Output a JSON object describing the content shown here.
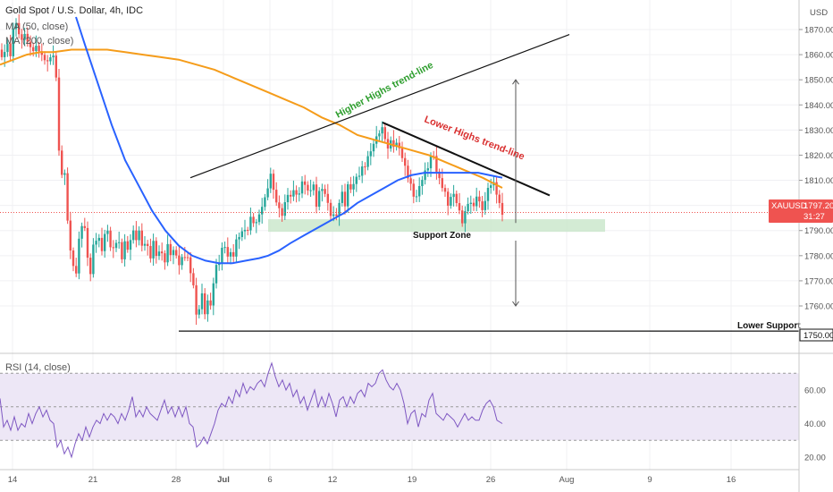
{
  "legend": {
    "title": "Gold Spot / U.S. Dollar, 4h, IDC",
    "ma1": "MA (50, close)",
    "ma2": "MA (200, close)",
    "rsi": "RSI (14, close)"
  },
  "price_axis": {
    "unit": "USD",
    "ticks": [
      "1870.00",
      "1860.00",
      "1850.00",
      "1840.00",
      "1830.00",
      "1820.00",
      "1810.00",
      "1800.00",
      "1790.00",
      "1780.00",
      "1770.00",
      "1760.00"
    ],
    "tick_values": [
      1870,
      1860,
      1850,
      1840,
      1830,
      1820,
      1810,
      1800,
      1790,
      1780,
      1770,
      1760
    ],
    "symbol": "XAUUSD",
    "last_price": "1797.20",
    "countdown": "31:27",
    "lower_support_price": "1750.00"
  },
  "rsi_axis": {
    "ticks": [
      "60.00",
      "40.00",
      "20.00"
    ],
    "tick_values": [
      60,
      40,
      20
    ],
    "upper_band": 70,
    "lower_band": 30,
    "mid": 50
  },
  "time_axis": {
    "ticks": [
      "14",
      "21",
      "28",
      "Jul",
      "6",
      "12",
      "19",
      "26",
      "Aug",
      "9",
      "16"
    ]
  },
  "annotations": {
    "higher_highs": "Higher Highs trend-line",
    "lower_highs": "Lower Highs trend-line",
    "support_zone": "Support Zone",
    "lower_support": "Lower Support"
  },
  "colors": {
    "up": "#26a69a",
    "down": "#ef5350",
    "ma50": "#2962ff",
    "ma200": "#f59c1a",
    "rsi": "#7e57c2",
    "rsi_band": "#ede7f6",
    "support_zone": "#c8e6c9",
    "price_tag": "#ef5350"
  },
  "chart_data": {
    "type": "candlestick",
    "instrument": "Gold Spot / U.S. Dollar",
    "interval": "4h",
    "price_range": [
      1748,
      1875
    ],
    "close_path": [
      [
        0,
        1862
      ],
      [
        2,
        1859
      ],
      [
        4,
        1866
      ],
      [
        6,
        1858
      ],
      [
        8,
        1862
      ],
      [
        10,
        1865
      ],
      [
        12,
        1858
      ],
      [
        15,
        1869
      ],
      [
        18,
        1872
      ],
      [
        21,
        1868
      ],
      [
        24,
        1864
      ],
      [
        27,
        1871
      ],
      [
        30,
        1864
      ],
      [
        33,
        1867
      ],
      [
        36,
        1860
      ],
      [
        39,
        1866
      ],
      [
        42,
        1862
      ],
      [
        45,
        1864
      ],
      [
        48,
        1856
      ],
      [
        51,
        1860
      ],
      [
        54,
        1855
      ],
      [
        58,
        1860
      ],
      [
        62,
        1858
      ],
      [
        64,
        1835
      ],
      [
        66,
        1822
      ],
      [
        68,
        1812
      ],
      [
        70,
        1810
      ],
      [
        72,
        1815
      ],
      [
        74,
        1805
      ],
      [
        76,
        1792
      ],
      [
        78,
        1780
      ],
      [
        80,
        1785
      ],
      [
        82,
        1778
      ],
      [
        84,
        1770
      ],
      [
        86,
        1775
      ],
      [
        88,
        1790
      ],
      [
        90,
        1782
      ],
      [
        92,
        1795
      ],
      [
        94,
        1788
      ],
      [
        96,
        1795
      ],
      [
        98,
        1780
      ],
      [
        100,
        1765
      ],
      [
        102,
        1775
      ],
      [
        104,
        1785
      ],
      [
        106,
        1782
      ],
      [
        110,
        1788
      ],
      [
        113,
        1780
      ],
      [
        116,
        1785
      ],
      [
        120,
        1792
      ],
      [
        124,
        1782
      ],
      [
        128,
        1785
      ],
      [
        132,
        1788
      ],
      [
        136,
        1780
      ],
      [
        140,
        1786
      ],
      [
        144,
        1782
      ],
      [
        148,
        1790
      ],
      [
        152,
        1786
      ],
      [
        156,
        1788
      ],
      [
        160,
        1782
      ],
      [
        164,
        1785
      ],
      [
        168,
        1779
      ],
      [
        172,
        1786
      ],
      [
        176,
        1780
      ],
      [
        180,
        1784
      ],
      [
        184,
        1778
      ],
      [
        188,
        1785
      ],
      [
        192,
        1780
      ],
      [
        196,
        1782
      ],
      [
        200,
        1775
      ],
      [
        204,
        1778
      ],
      [
        208,
        1780
      ],
      [
        212,
        1775
      ],
      [
        216,
        1770
      ],
      [
        218,
        1760
      ],
      [
        220,
        1756
      ],
      [
        222,
        1762
      ],
      [
        224,
        1758
      ],
      [
        226,
        1765
      ],
      [
        228,
        1760
      ],
      [
        230,
        1758
      ],
      [
        232,
        1764
      ],
      [
        234,
        1756
      ],
      [
        236,
        1762
      ],
      [
        238,
        1768
      ],
      [
        240,
        1772
      ],
      [
        242,
        1775
      ],
      [
        244,
        1780
      ],
      [
        246,
        1776
      ],
      [
        248,
        1782
      ],
      [
        250,
        1778
      ],
      [
        252,
        1784
      ],
      [
        254,
        1780
      ],
      [
        256,
        1777
      ],
      [
        258,
        1780
      ],
      [
        260,
        1778
      ],
      [
        262,
        1782
      ],
      [
        264,
        1786
      ],
      [
        266,
        1784
      ],
      [
        268,
        1790
      ],
      [
        270,
        1788
      ],
      [
        272,
        1794
      ],
      [
        274,
        1791
      ],
      [
        276,
        1795
      ],
      [
        278,
        1790
      ],
      [
        280,
        1796
      ],
      [
        282,
        1792
      ],
      [
        284,
        1795
      ],
      [
        286,
        1792
      ],
      [
        290,
        1796
      ],
      [
        294,
        1800
      ],
      [
        298,
        1802
      ],
      [
        300,
        1808
      ],
      [
        302,
        1810
      ],
      [
        304,
        1812
      ],
      [
        306,
        1806
      ],
      [
        308,
        1800
      ],
      [
        310,
        1802
      ],
      [
        314,
        1796
      ],
      [
        318,
        1800
      ],
      [
        322,
        1806
      ],
      [
        326,
        1804
      ],
      [
        330,
        1808
      ],
      [
        334,
        1802
      ],
      [
        338,
        1810
      ],
      [
        342,
        1806
      ],
      [
        346,
        1804
      ],
      [
        350,
        1808
      ],
      [
        354,
        1800
      ],
      [
        358,
        1806
      ],
      [
        362,
        1808
      ],
      [
        366,
        1802
      ],
      [
        370,
        1798
      ],
      [
        374,
        1796
      ],
      [
        378,
        1798
      ],
      [
        382,
        1806
      ],
      [
        386,
        1800
      ],
      [
        390,
        1808
      ],
      [
        394,
        1805
      ],
      [
        398,
        1810
      ],
      [
        402,
        1812
      ],
      [
        406,
        1815
      ],
      [
        410,
        1818
      ],
      [
        414,
        1822
      ],
      [
        418,
        1826
      ],
      [
        422,
        1828
      ],
      [
        426,
        1832
      ],
      [
        430,
        1828
      ],
      [
        434,
        1822
      ],
      [
        438,
        1825
      ],
      [
        442,
        1822
      ],
      [
        446,
        1824
      ],
      [
        450,
        1818
      ],
      [
        454,
        1815
      ],
      [
        458,
        1810
      ],
      [
        462,
        1806
      ],
      [
        466,
        1804
      ],
      [
        470,
        1810
      ],
      [
        474,
        1812
      ],
      [
        478,
        1815
      ],
      [
        482,
        1818
      ],
      [
        484,
        1824
      ],
      [
        486,
        1816
      ],
      [
        490,
        1810
      ],
      [
        494,
        1808
      ],
      [
        498,
        1804
      ],
      [
        502,
        1800
      ],
      [
        506,
        1806
      ],
      [
        510,
        1804
      ],
      [
        514,
        1798
      ],
      [
        518,
        1794
      ],
      [
        522,
        1800
      ],
      [
        526,
        1802
      ],
      [
        530,
        1798
      ],
      [
        534,
        1805
      ],
      [
        538,
        1796
      ],
      [
        542,
        1800
      ],
      [
        546,
        1806
      ],
      [
        550,
        1810
      ],
      [
        554,
        1808
      ],
      [
        558,
        1803
      ],
      [
        562,
        1797
      ]
    ],
    "ma50_path": [
      [
        85,
        1875
      ],
      [
        95,
        1864
      ],
      [
        110,
        1848
      ],
      [
        125,
        1832
      ],
      [
        140,
        1818
      ],
      [
        155,
        1808
      ],
      [
        170,
        1798
      ],
      [
        185,
        1790
      ],
      [
        200,
        1784
      ],
      [
        215,
        1780
      ],
      [
        230,
        1778
      ],
      [
        245,
        1777
      ],
      [
        260,
        1777
      ],
      [
        275,
        1778
      ],
      [
        290,
        1779
      ],
      [
        300,
        1780
      ],
      [
        312,
        1782
      ],
      [
        325,
        1785
      ],
      [
        340,
        1788
      ],
      [
        355,
        1791
      ],
      [
        370,
        1794
      ],
      [
        385,
        1797
      ],
      [
        400,
        1801
      ],
      [
        415,
        1804
      ],
      [
        430,
        1807
      ],
      [
        445,
        1810
      ],
      [
        460,
        1812
      ],
      [
        475,
        1813
      ],
      [
        490,
        1813
      ],
      [
        505,
        1813
      ],
      [
        520,
        1813
      ],
      [
        535,
        1813
      ],
      [
        548,
        1812
      ],
      [
        562,
        1811
      ]
    ],
    "ma200_path": [
      [
        0,
        1856
      ],
      [
        15,
        1858
      ],
      [
        30,
        1860
      ],
      [
        45,
        1861
      ],
      [
        60,
        1861
      ],
      [
        80,
        1862
      ],
      [
        100,
        1862
      ],
      [
        120,
        1862
      ],
      [
        140,
        1861
      ],
      [
        160,
        1860
      ],
      [
        180,
        1859
      ],
      [
        200,
        1858
      ],
      [
        220,
        1856
      ],
      [
        240,
        1854
      ],
      [
        260,
        1851
      ],
      [
        280,
        1848
      ],
      [
        300,
        1845
      ],
      [
        320,
        1842
      ],
      [
        340,
        1839
      ],
      [
        360,
        1835
      ],
      [
        380,
        1832
      ],
      [
        400,
        1828
      ],
      [
        420,
        1826
      ],
      [
        440,
        1824
      ],
      [
        460,
        1822
      ],
      [
        480,
        1820
      ],
      [
        500,
        1817
      ],
      [
        520,
        1814
      ],
      [
        540,
        1811
      ],
      [
        562,
        1807
      ]
    ],
    "rsi_path": [
      [
        0,
        55
      ],
      [
        4,
        38
      ],
      [
        8,
        42
      ],
      [
        12,
        36
      ],
      [
        16,
        44
      ],
      [
        20,
        36
      ],
      [
        24,
        40
      ],
      [
        28,
        38
      ],
      [
        32,
        46
      ],
      [
        36,
        40
      ],
      [
        40,
        46
      ],
      [
        44,
        50
      ],
      [
        48,
        44
      ],
      [
        52,
        48
      ],
      [
        56,
        42
      ],
      [
        60,
        40
      ],
      [
        64,
        26
      ],
      [
        68,
        30
      ],
      [
        72,
        22
      ],
      [
        76,
        26
      ],
      [
        80,
        20
      ],
      [
        84,
        28
      ],
      [
        88,
        34
      ],
      [
        92,
        30
      ],
      [
        96,
        38
      ],
      [
        100,
        32
      ],
      [
        104,
        38
      ],
      [
        108,
        42
      ],
      [
        112,
        40
      ],
      [
        116,
        46
      ],
      [
        120,
        42
      ],
      [
        124,
        46
      ],
      [
        128,
        44
      ],
      [
        132,
        40
      ],
      [
        136,
        46
      ],
      [
        140,
        42
      ],
      [
        144,
        48
      ],
      [
        148,
        56
      ],
      [
        152,
        44
      ],
      [
        156,
        48
      ],
      [
        160,
        44
      ],
      [
        164,
        50
      ],
      [
        168,
        46
      ],
      [
        172,
        44
      ],
      [
        176,
        42
      ],
      [
        180,
        48
      ],
      [
        184,
        54
      ],
      [
        188,
        46
      ],
      [
        192,
        50
      ],
      [
        196,
        44
      ],
      [
        200,
        50
      ],
      [
        204,
        44
      ],
      [
        208,
        50
      ],
      [
        212,
        40
      ],
      [
        216,
        38
      ],
      [
        220,
        26
      ],
      [
        224,
        28
      ],
      [
        228,
        32
      ],
      [
        232,
        28
      ],
      [
        236,
        34
      ],
      [
        240,
        40
      ],
      [
        244,
        48
      ],
      [
        248,
        52
      ],
      [
        252,
        50
      ],
      [
        256,
        56
      ],
      [
        260,
        52
      ],
      [
        264,
        60
      ],
      [
        268,
        56
      ],
      [
        272,
        64
      ],
      [
        276,
        58
      ],
      [
        280,
        62
      ],
      [
        284,
        60
      ],
      [
        288,
        64
      ],
      [
        292,
        66
      ],
      [
        296,
        62
      ],
      [
        300,
        70
      ],
      [
        304,
        76
      ],
      [
        308,
        68
      ],
      [
        312,
        62
      ],
      [
        316,
        66
      ],
      [
        320,
        60
      ],
      [
        324,
        64
      ],
      [
        328,
        56
      ],
      [
        332,
        60
      ],
      [
        336,
        52
      ],
      [
        340,
        56
      ],
      [
        344,
        48
      ],
      [
        348,
        54
      ],
      [
        352,
        60
      ],
      [
        356,
        50
      ],
      [
        360,
        56
      ],
      [
        364,
        50
      ],
      [
        368,
        58
      ],
      [
        372,
        52
      ],
      [
        376,
        44
      ],
      [
        380,
        54
      ],
      [
        384,
        56
      ],
      [
        388,
        50
      ],
      [
        392,
        56
      ],
      [
        396,
        52
      ],
      [
        400,
        58
      ],
      [
        404,
        60
      ],
      [
        408,
        56
      ],
      [
        412,
        64
      ],
      [
        416,
        62
      ],
      [
        420,
        64
      ],
      [
        424,
        70
      ],
      [
        428,
        72
      ],
      [
        432,
        66
      ],
      [
        436,
        62
      ],
      [
        440,
        60
      ],
      [
        444,
        64
      ],
      [
        448,
        60
      ],
      [
        452,
        52
      ],
      [
        456,
        40
      ],
      [
        460,
        46
      ],
      [
        464,
        48
      ],
      [
        468,
        38
      ],
      [
        472,
        46
      ],
      [
        476,
        44
      ],
      [
        480,
        54
      ],
      [
        484,
        58
      ],
      [
        488,
        46
      ],
      [
        492,
        44
      ],
      [
        496,
        42
      ],
      [
        500,
        46
      ],
      [
        504,
        44
      ],
      [
        508,
        42
      ],
      [
        512,
        38
      ],
      [
        516,
        42
      ],
      [
        520,
        46
      ],
      [
        524,
        42
      ],
      [
        528,
        44
      ],
      [
        532,
        42
      ],
      [
        536,
        42
      ],
      [
        540,
        48
      ],
      [
        544,
        52
      ],
      [
        548,
        54
      ],
      [
        552,
        50
      ],
      [
        556,
        42
      ],
      [
        562,
        40
      ]
    ],
    "higher_highs_trendline": [
      [
        213,
        1811
      ],
      [
        637,
        1868
      ]
    ],
    "lower_highs_trendline": [
      [
        428,
        1833
      ],
      [
        615,
        1804
      ]
    ],
    "support_zone": {
      "from": 1791,
      "to": 1793
    },
    "lower_support": 1750,
    "measure_up": {
      "from": 1793,
      "to": 1850
    },
    "measure_down": {
      "from": 1786,
      "to": 1760
    },
    "last_close": 1797.2
  }
}
